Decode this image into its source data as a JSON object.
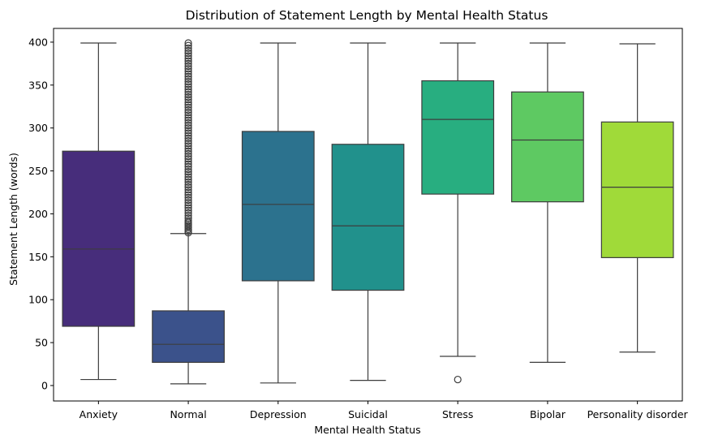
{
  "chart_data": {
    "type": "box",
    "title": "Distribution of Statement Length by Mental Health Status",
    "xlabel": "Mental Health Status",
    "ylabel": "Statement Length (words)",
    "ylim": [
      -18,
      416
    ],
    "yticks": [
      0,
      50,
      100,
      150,
      200,
      250,
      300,
      350,
      400
    ],
    "categories": [
      "Anxiety",
      "Normal",
      "Depression",
      "Suicidal",
      "Stress",
      "Bipolar",
      "Personality disorder"
    ],
    "boxes": [
      {
        "category": "Anxiety",
        "whisker_low": 7,
        "q1": 69,
        "median": 159,
        "q3": 273,
        "whisker_high": 399,
        "color": "#472d7b",
        "outliers": []
      },
      {
        "category": "Normal",
        "whisker_low": 2,
        "q1": 27,
        "median": 48,
        "q3": 87,
        "whisker_high": 177,
        "color": "#3b528b",
        "outliers": [
          178,
          180,
          182,
          184,
          186,
          188,
          190,
          192,
          195,
          198,
          201,
          204,
          207,
          210,
          213,
          216,
          219,
          222,
          225,
          228,
          231,
          234,
          237,
          240,
          243,
          246,
          249,
          252,
          255,
          258,
          261,
          264,
          267,
          270,
          273,
          276,
          279,
          282,
          285,
          288,
          291,
          294,
          297,
          300,
          303,
          306,
          309,
          312,
          315,
          318,
          321,
          324,
          327,
          330,
          333,
          336,
          339,
          342,
          345,
          348,
          351,
          354,
          357,
          360,
          363,
          366,
          369,
          372,
          375,
          378,
          381,
          384,
          387,
          390,
          393,
          396,
          399
        ]
      },
      {
        "category": "Depression",
        "whisker_low": 3,
        "q1": 122,
        "median": 211,
        "q3": 296,
        "whisker_high": 399,
        "color": "#2c728e",
        "outliers": []
      },
      {
        "category": "Suicidal",
        "whisker_low": 6,
        "q1": 111,
        "median": 186,
        "q3": 281,
        "whisker_high": 399,
        "color": "#21918c",
        "outliers": []
      },
      {
        "category": "Stress",
        "whisker_low": 34,
        "q1": 223,
        "median": 310,
        "q3": 355,
        "whisker_high": 399,
        "color": "#28ae80",
        "outliers": [
          7
        ]
      },
      {
        "category": "Bipolar",
        "whisker_low": 27,
        "q1": 214,
        "median": 286,
        "q3": 342,
        "whisker_high": 399,
        "color": "#5ec962",
        "outliers": []
      },
      {
        "category": "Personality disorder",
        "whisker_low": 39,
        "q1": 149,
        "median": 231,
        "q3": 307,
        "whisker_high": 398,
        "color": "#a0da39",
        "outliers": []
      }
    ],
    "grid": false,
    "legend": "none"
  }
}
